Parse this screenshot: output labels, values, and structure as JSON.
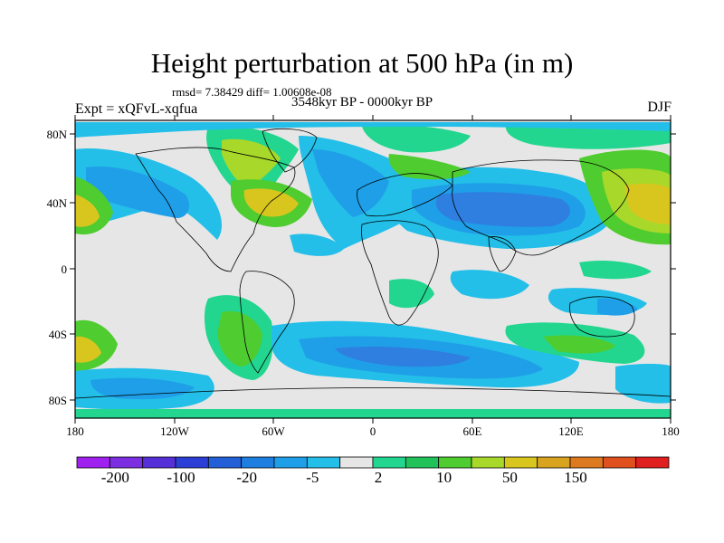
{
  "title": "Height perturbation at 500 hPa (in m)",
  "stats_line": "rmsd= 7.38429 diff= 1.00608e-08",
  "experiment": "Expt = xQFvL-xqfua",
  "period": "3548kyr BP - 0000kyr BP",
  "season": "DJF",
  "lat_labels": [
    "80N",
    "40N",
    "0",
    "40S",
    "80S"
  ],
  "lon_labels": [
    "180",
    "120W",
    "60W",
    "0",
    "60E",
    "120E",
    "180"
  ],
  "colorbar": {
    "colors": [
      "#a020f0",
      "#7b2fe0",
      "#5530d8",
      "#2b3fd6",
      "#2360d8",
      "#1f7fe0",
      "#1f9fe8",
      "#23bfe8",
      "#e6e6e6",
      "#22d68f",
      "#22c25a",
      "#4fcc2f",
      "#a8d82a",
      "#d8c61f",
      "#d8a31f",
      "#dd7a1f",
      "#e0501f",
      "#e01f1f"
    ],
    "labels": [
      "-200",
      "-100",
      "-20",
      "-5",
      "2",
      "10",
      "50",
      "150"
    ]
  },
  "field_colors": {
    "ocean": "#e6e6e6",
    "neg_weak": "#23bfe8",
    "neg_mid": "#1f9fe8",
    "neg_strong": "#2f7fe0",
    "neg_deep": "#2360d8",
    "pos_weak": "#22d68f",
    "pos_mid": "#4fcc2f",
    "pos_strong": "#a8d82a",
    "pos_deep": "#d8c61f"
  }
}
